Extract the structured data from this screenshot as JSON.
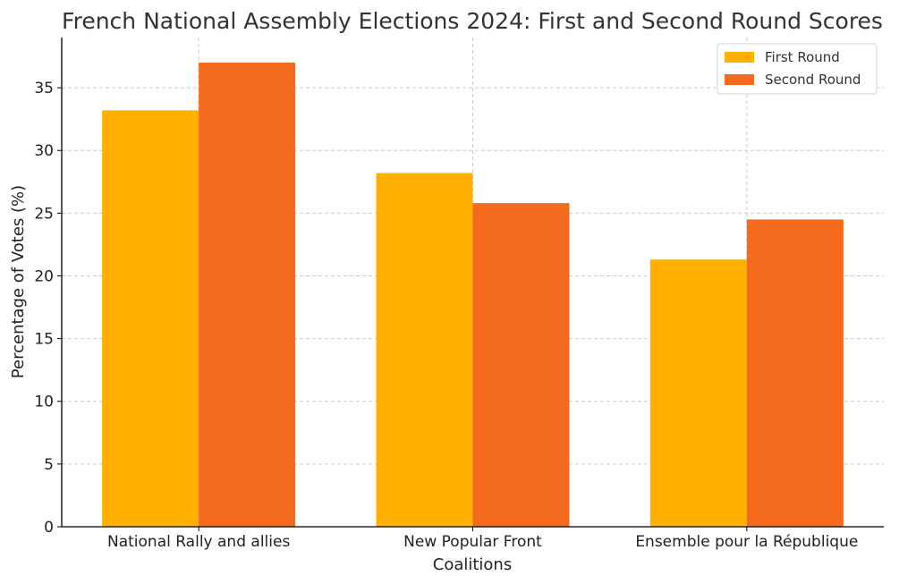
{
  "chart_data": {
    "type": "bar",
    "title": "French National Assembly Elections 2024: First and Second Round Scores",
    "xlabel": "Coalitions",
    "ylabel": "Percentage of Votes (%)",
    "categories": [
      "National Rally and allies",
      "New Popular Front",
      "Ensemble pour la République"
    ],
    "series": [
      {
        "name": "First Round",
        "values": [
          33.2,
          28.2,
          21.3
        ],
        "color": "#FFB000"
      },
      {
        "name": "Second Round",
        "values": [
          37.0,
          25.8,
          24.5
        ],
        "color": "#F46B1F"
      }
    ],
    "ylim": [
      0,
      39
    ],
    "yticks": [
      0,
      5,
      10,
      15,
      20,
      25,
      30,
      35
    ],
    "grid": true,
    "legend_position": "top-right"
  }
}
